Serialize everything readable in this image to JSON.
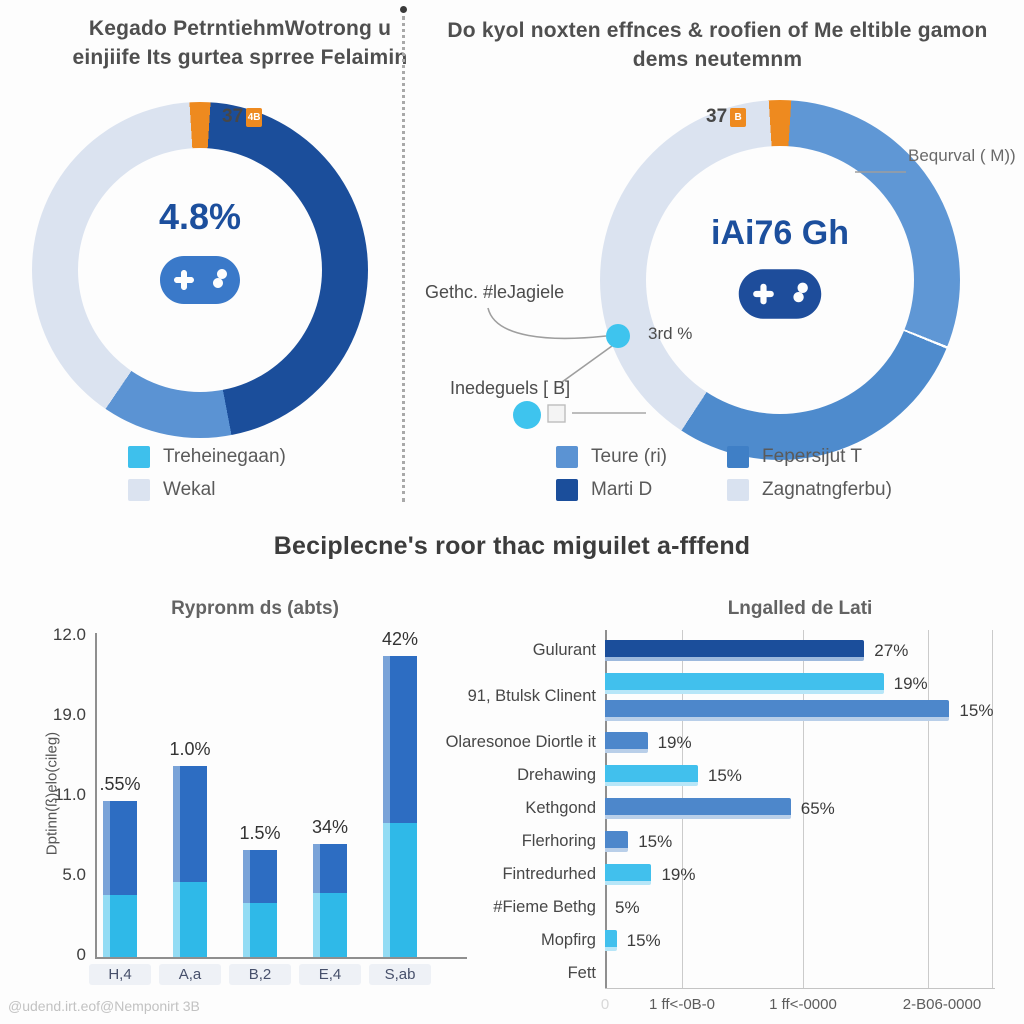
{
  "colors": {
    "dark_blue": "#1b4e9b",
    "medium_blue": "#5b93d3",
    "blue": "#4d87cb",
    "cyan": "#3ec0ec",
    "light_ring": "#dbe3f0",
    "orange": "#ee8a1f",
    "bar_blue": "#2d6dc2",
    "bar_cyan": "#2fb9e8"
  },
  "top_left": {
    "title_line1": "Kegado PetrntiehmWotrong u",
    "title_line2": "einjiife Its gurtea sprree Felaimin",
    "donut_label": "37",
    "donut_badge": "4B",
    "center_value": "4.8%",
    "icon_color": "#3a79c9",
    "legend": [
      {
        "label": "Treheinegaan)",
        "color": "#3ec0ec"
      },
      {
        "label": "Wekal",
        "color": "#dbe3f0"
      }
    ],
    "slices": [
      {
        "name": "orange-sliver",
        "value": 2,
        "color": "#ee8a1f"
      },
      {
        "name": "Marti D",
        "value": 46,
        "color": "#1b4e9b"
      },
      {
        "name": "Treheinegaan)",
        "value": 12.5,
        "color": "#5b93d3"
      },
      {
        "name": "Wekal",
        "value": 39.5,
        "color": "#dbe3f0"
      }
    ]
  },
  "top_right": {
    "title_line1": "Do kyol noxten effnces & roofien of Me eltible gamon",
    "title_line2": "dems neutemnm",
    "donut_label": "37",
    "donut_badge": "B",
    "center_value": "iAi76 Gh",
    "icon_color": "#1e4d9b",
    "callout_right": "Bequrval ( M))",
    "callout_mid_text": "Gethc. #leJagiele",
    "callout_mid_value": "3rd %",
    "callout_low_text": "Inedeguels [ B]",
    "legend": [
      {
        "label": "Teure (ri)",
        "color": "#5b93d3"
      },
      {
        "label": "Marti D",
        "color": "#1b4e9b"
      },
      {
        "label": "Fepersijut T",
        "color": "#3f7fc6"
      },
      {
        "label": "Zagnatngferbu)",
        "color": "#d9e2f0"
      }
    ],
    "slices": [
      {
        "name": "orange-sliver",
        "value": 2,
        "color": "#ee8a1f"
      },
      {
        "name": "Teure (ri)",
        "value": 30,
        "color": "#5f97d5",
        "divider_after": true
      },
      {
        "name": "Fepersijut T",
        "value": 28,
        "color": "#4e8bcd"
      },
      {
        "name": "Zagnatngferbu)",
        "value": 40,
        "color": "#dbe3f0"
      }
    ]
  },
  "section_heading": "Beciplecne's roor thac miguilet a-fffend",
  "footer": "@udend.irt.eof@Nemponirt 3B",
  "chart_data": [
    {
      "type": "pie",
      "title": "Kegado PetrntiehmWotrong u einjiife Its gurtea sprree Felaimin",
      "center_label": "4.8%",
      "annotation": "37",
      "legend_position": "bottom-left",
      "slices": [
        {
          "label": "Marti D",
          "value": 46
        },
        {
          "label": "Treheinegaan)",
          "value": 12.5
        },
        {
          "label": "Wekal",
          "value": 39.5
        },
        {
          "label": "orange sliver (37)",
          "value": 2
        }
      ]
    },
    {
      "type": "pie",
      "title": "Do kyol noxten effnces & roofien of Me eltible gamon dems neutemnm",
      "center_label": "iAi76 Gh",
      "annotation": "37",
      "callouts": [
        "Bequrval ( M))",
        "Gethc. #leJagiele",
        "3rd %",
        "Inedeguels [ B]"
      ],
      "legend_position": "bottom",
      "slices": [
        {
          "label": "Teure (ri)",
          "value": 30
        },
        {
          "label": "Fepersijut T",
          "value": 28
        },
        {
          "label": "Zagnatngferbu)",
          "value": 40
        },
        {
          "label": "orange sliver (37)",
          "value": 2
        }
      ]
    },
    {
      "type": "bar",
      "title": "Rypronm ds (abts)",
      "ylabel": "Dptinn(ß)elo(cileg)",
      "yticks": [
        "12.0",
        "19.0",
        "11.0",
        "5.0",
        "0"
      ],
      "ylim": [
        0,
        12
      ],
      "grid": false,
      "categories": [
        "H,4",
        "A,a",
        "B,2",
        "E,4",
        "S,ab"
      ],
      "bar_labels": [
        ".55%",
        "1.0%",
        "1.5%",
        "34%",
        "42%"
      ],
      "series": [
        {
          "name": "cyan bottom segment",
          "values": [
            2.3,
            2.8,
            2.0,
            2.4,
            5.0
          ]
        },
        {
          "name": "blue top segment",
          "values": [
            3.5,
            4.3,
            2.0,
            1.8,
            6.2
          ]
        }
      ]
    },
    {
      "type": "bar",
      "orientation": "horizontal",
      "title": "Lngalled de Lati",
      "grid": true,
      "xticks": [
        "0",
        "1 ff<-0B-0",
        "1 ff<-0000",
        "2-B06-0000"
      ],
      "rows": [
        {
          "label": "Gulurant",
          "bars": [
            {
              "value": "27%",
              "length": 67,
              "color": "dark"
            }
          ]
        },
        {
          "label": "91, Btulsk Clinent",
          "bars": [
            {
              "value": "19%",
              "length": 72,
              "color": "cyan"
            },
            {
              "value": "15%",
              "length": 89,
              "color": "blue"
            }
          ]
        },
        {
          "label": "Olaresonoe Diortle it",
          "bars": [
            {
              "value": "19%",
              "length": 11,
              "color": "blue"
            }
          ]
        },
        {
          "label": "Drehawing",
          "bars": [
            {
              "value": "15%",
              "length": 24,
              "color": "cyan"
            }
          ]
        },
        {
          "label": "Kethgond",
          "bars": [
            {
              "value": "65%",
              "length": 48,
              "color": "blue"
            }
          ]
        },
        {
          "label": "Flerhoring",
          "bars": [
            {
              "value": "15%",
              "length": 6,
              "color": "blue"
            }
          ]
        },
        {
          "label": "Fintredurhed",
          "bars": [
            {
              "value": "19%",
              "length": 12,
              "color": "cyan"
            }
          ]
        },
        {
          "label": "#Fieme Bethg",
          "bars": [
            {
              "value": "5%",
              "length": 0,
              "color": "cyan"
            }
          ]
        },
        {
          "label": "Mopfirg",
          "bars": [
            {
              "value": "15%",
              "length": 3,
              "color": "cyan"
            }
          ]
        },
        {
          "label": "Fett",
          "bars": []
        }
      ]
    }
  ]
}
